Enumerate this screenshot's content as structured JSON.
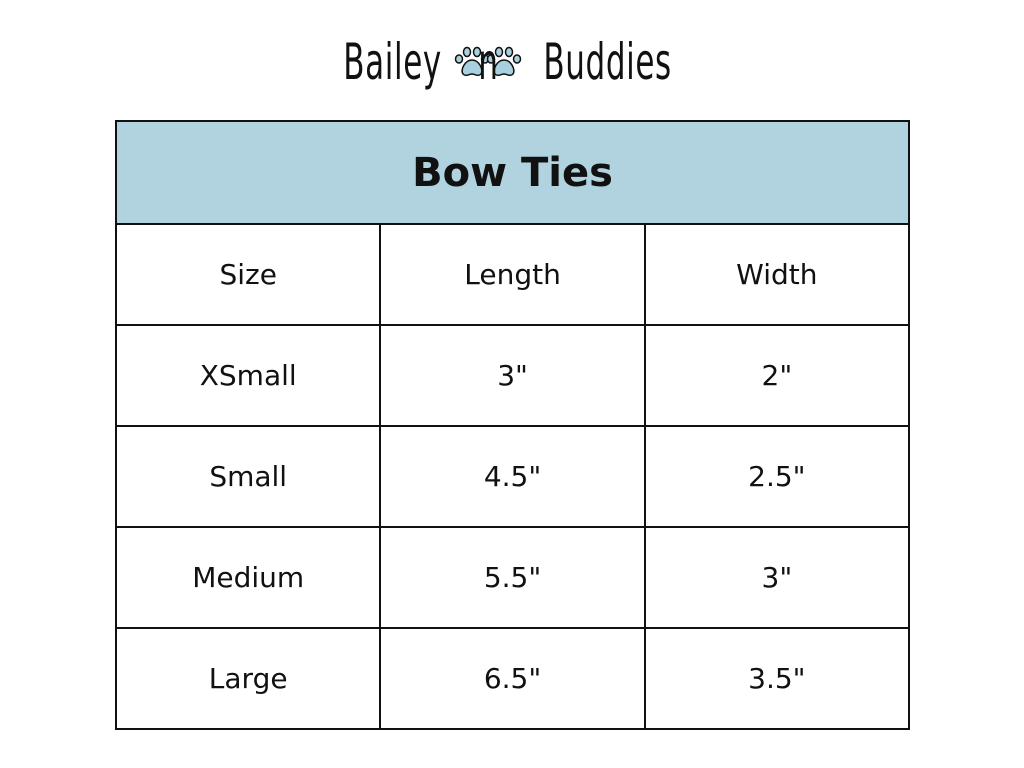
{
  "logo": {
    "text": "Bailey n Buddies",
    "part1": "Bailey",
    "part2": "n",
    "part3": "Buddies",
    "paw_color": "#a9d0de",
    "icon": "paw-icon"
  },
  "table": {
    "title": "Bow Ties",
    "header_color": "#b1d3df",
    "columns": [
      "Size",
      "Length",
      "Width"
    ],
    "rows": [
      [
        "XSmall",
        "3\"",
        "2\""
      ],
      [
        "Small",
        "4.5\"",
        "2.5\""
      ],
      [
        "Medium",
        "5.5\"",
        "3\""
      ],
      [
        "Large",
        "6.5\"",
        "3.5\""
      ]
    ]
  }
}
